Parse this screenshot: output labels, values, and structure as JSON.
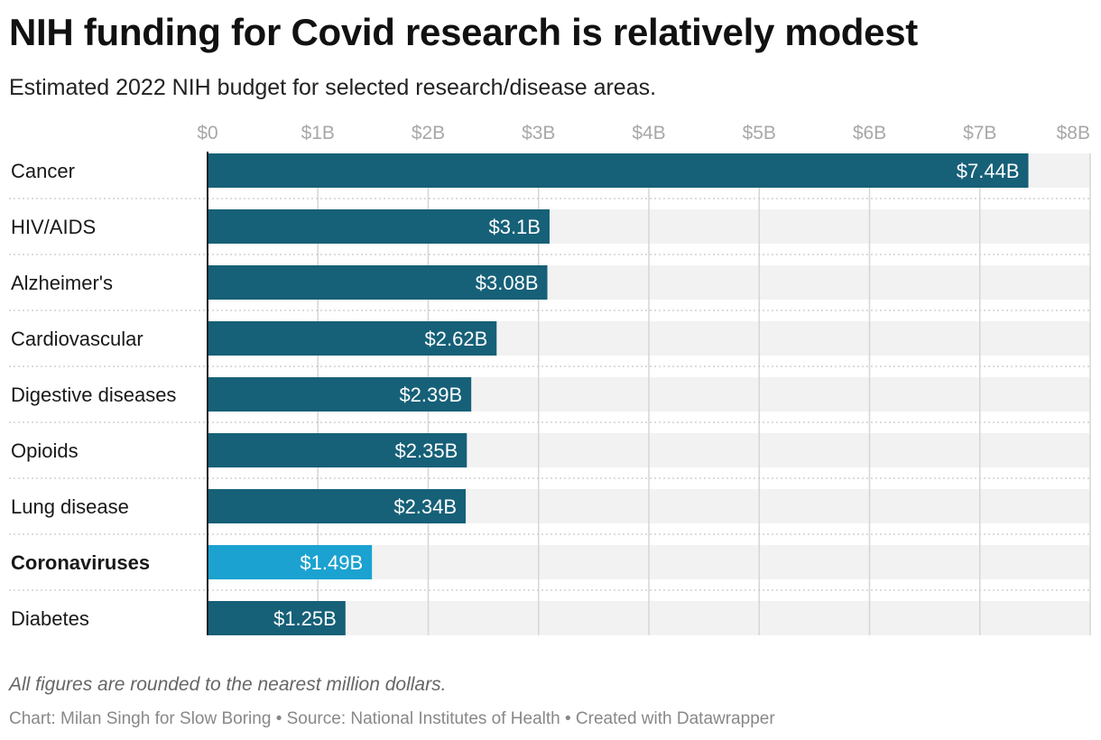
{
  "title": "NIH funding for Covid research is relatively modest",
  "subtitle": "Estimated 2022 NIH budget for selected research/disease areas.",
  "notes": "All figures are rounded to the nearest million dollars.",
  "footer": "Chart: Milan Singh for Slow Boring • Source: National Institutes of Health • Created with Datawrapper",
  "colors": {
    "bar": "#166078",
    "highlight": "#1ba2d0",
    "track": "#f2f2f2",
    "grid": "#d6d6d6",
    "tick_label": "#a8a8a8"
  },
  "chart_data": {
    "type": "bar",
    "orientation": "horizontal",
    "xlim": [
      0,
      8
    ],
    "x_ticks": [
      {
        "value": 0,
        "label": "$0"
      },
      {
        "value": 1,
        "label": "$1B"
      },
      {
        "value": 2,
        "label": "$2B"
      },
      {
        "value": 3,
        "label": "$3B"
      },
      {
        "value": 4,
        "label": "$4B"
      },
      {
        "value": 5,
        "label": "$5B"
      },
      {
        "value": 6,
        "label": "$6B"
      },
      {
        "value": 7,
        "label": "$7B"
      },
      {
        "value": 8,
        "label": "$8B"
      }
    ],
    "grid": true,
    "categories": [
      "Cancer",
      "HIV/AIDS",
      "Alzheimer's",
      "Cardiovascular",
      "Digestive diseases",
      "Opioids",
      "Lung disease",
      "Coronaviruses",
      "Diabetes"
    ],
    "values": [
      7.44,
      3.1,
      3.08,
      2.62,
      2.39,
      2.35,
      2.34,
      1.49,
      1.25
    ],
    "value_labels": [
      "$7.44B",
      "$3.1B",
      "$3.08B",
      "$2.62B",
      "$2.39B",
      "$2.35B",
      "$2.34B",
      "$1.49B",
      "$1.25B"
    ],
    "highlighted": [
      "Coronaviruses"
    ]
  }
}
